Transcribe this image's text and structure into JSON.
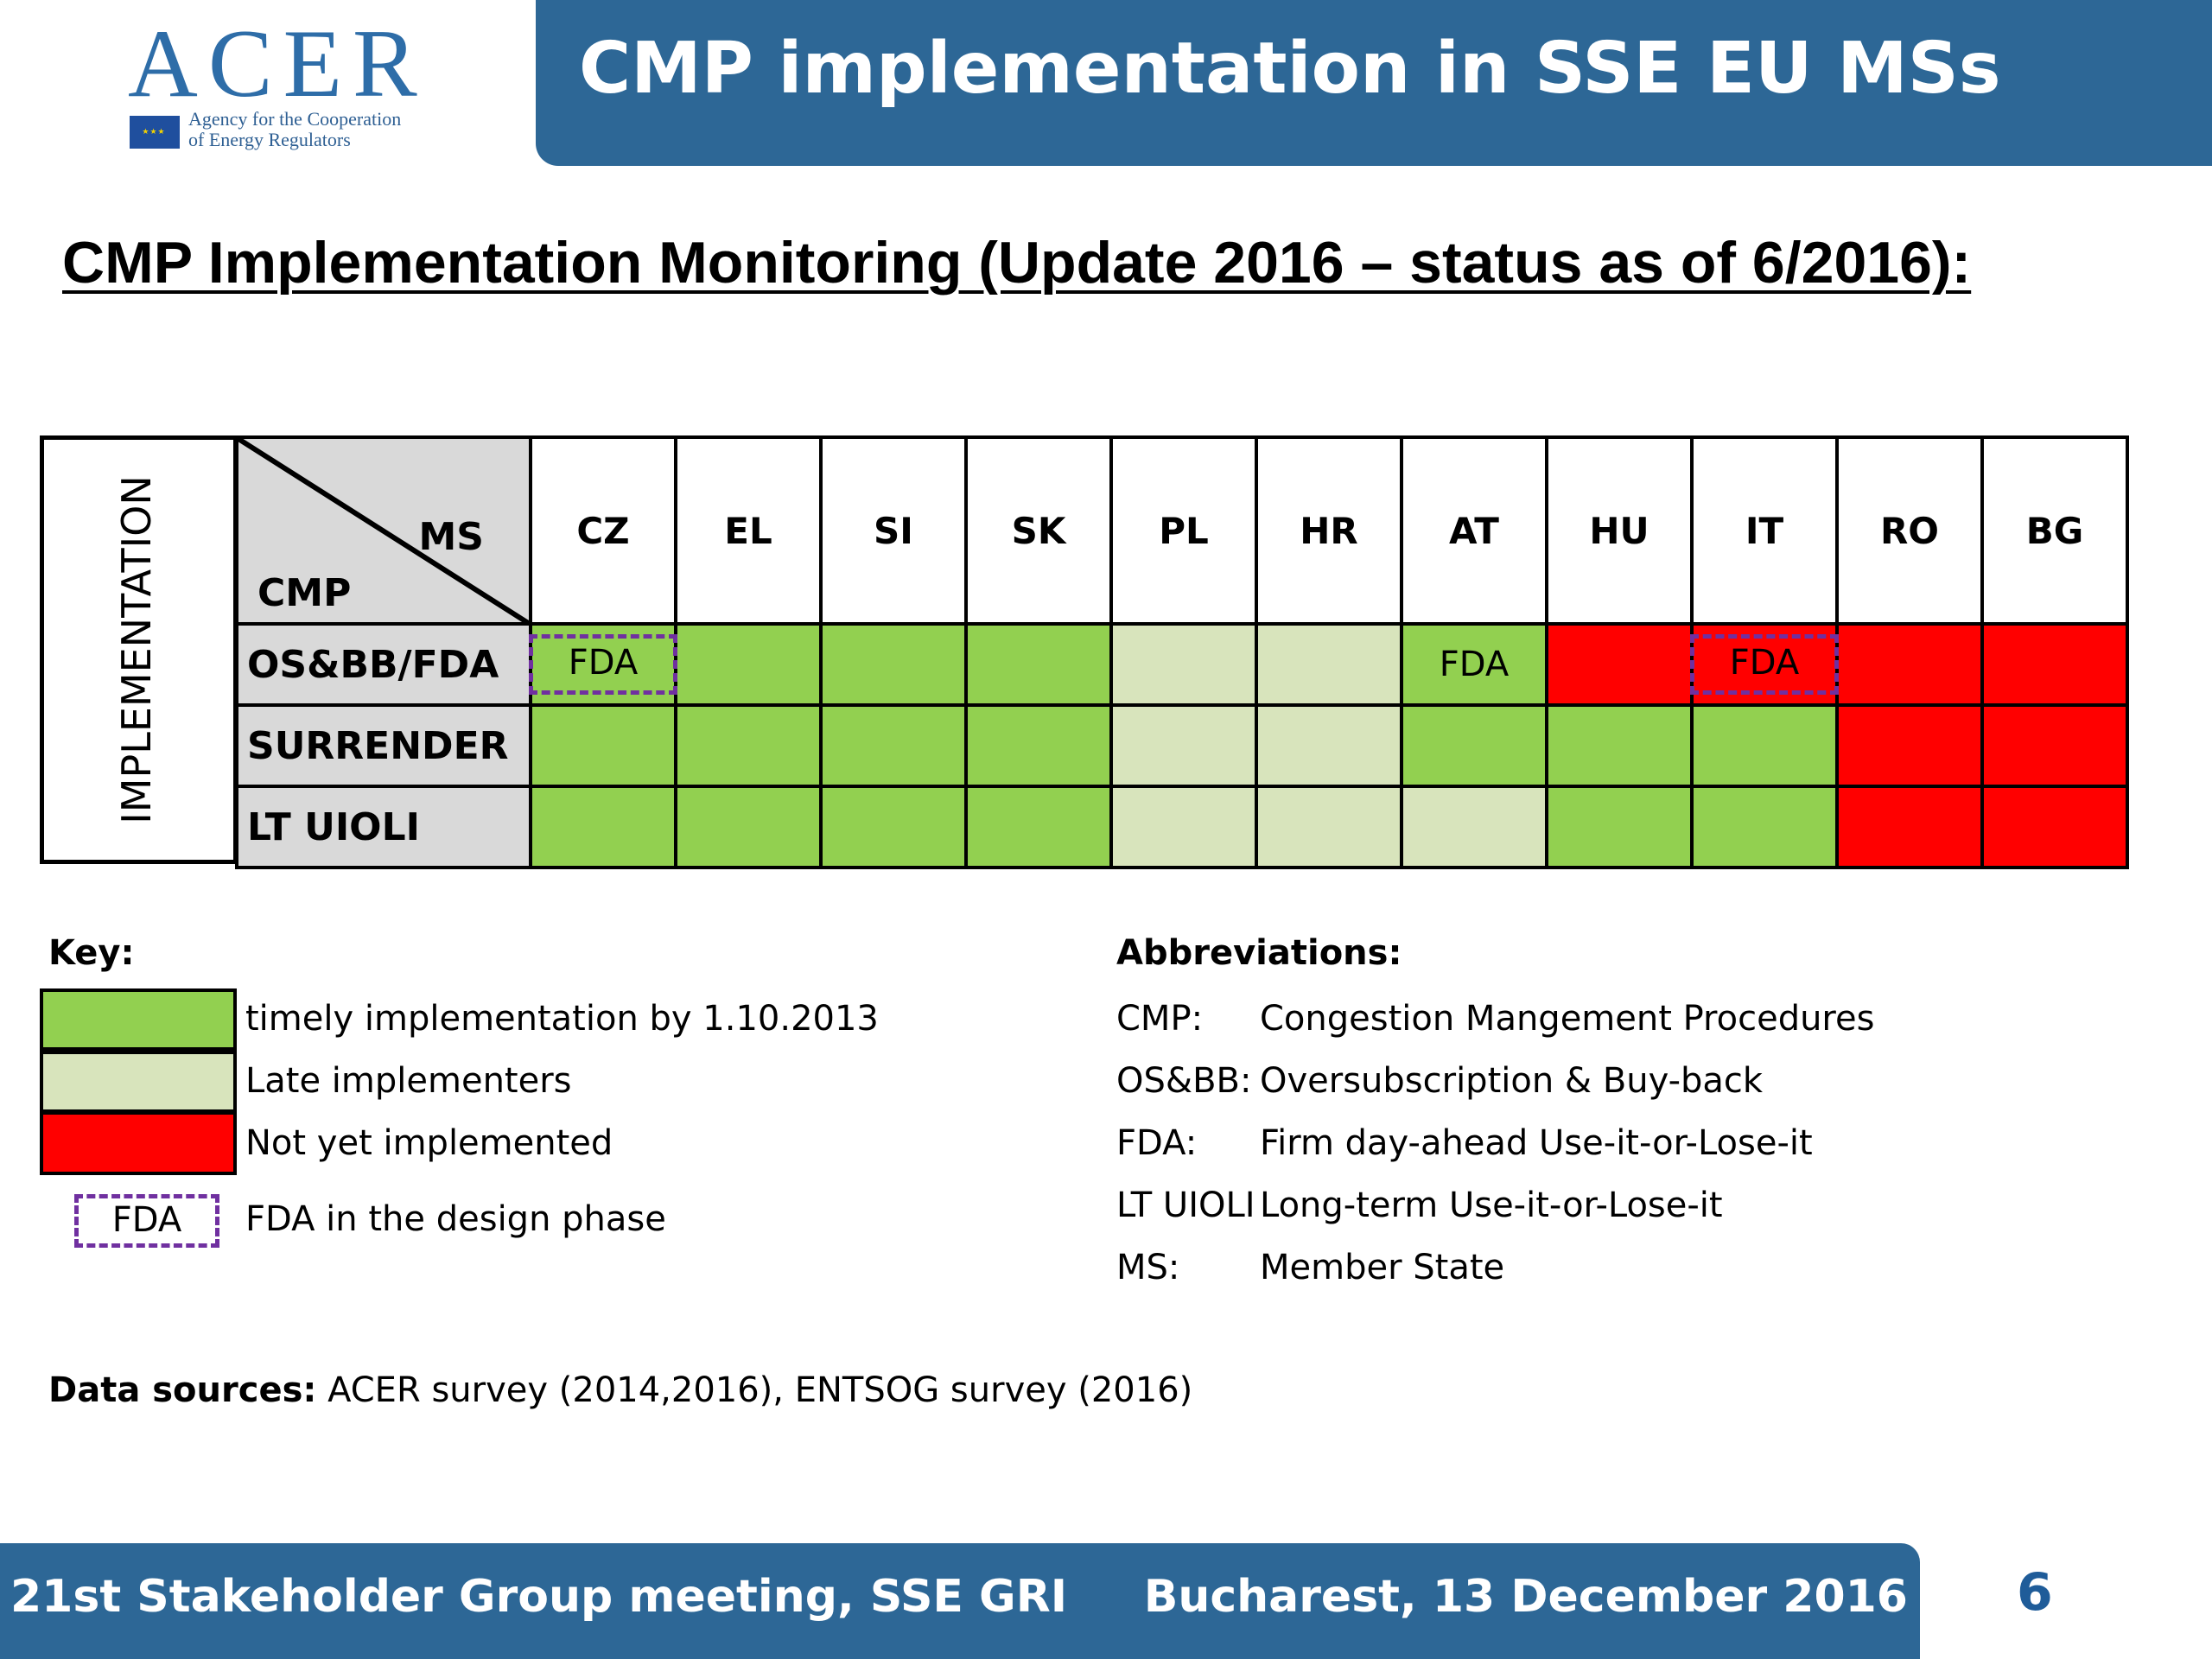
{
  "logo": {
    "word": "ACER",
    "subtitle_line1": "Agency for the Cooperation",
    "subtitle_line2": "of Energy Regulators"
  },
  "header": {
    "title": "CMP implementation in SSE EU MSs"
  },
  "subtitle": "CMP Implementation Monitoring (Update 2016 – status as of 6/2016):",
  "matrix": {
    "side_label": "IMPLEMENTATION",
    "corner_ms": "MS",
    "corner_cmp": "CMP",
    "countries": [
      "CZ",
      "EL",
      "SI",
      "SK",
      "PL",
      "HR",
      "AT",
      "HU",
      "IT",
      "RO",
      "BG"
    ],
    "rows": [
      {
        "label": "OS&BB/FDA",
        "cells": [
          {
            "status": "green",
            "text": "FDA",
            "design": true
          },
          {
            "status": "green",
            "text": "",
            "design": false
          },
          {
            "status": "green",
            "text": "",
            "design": false
          },
          {
            "status": "green",
            "text": "",
            "design": false
          },
          {
            "status": "light",
            "text": "",
            "design": false
          },
          {
            "status": "light",
            "text": "",
            "design": false
          },
          {
            "status": "green",
            "text": "FDA",
            "design": false
          },
          {
            "status": "red",
            "text": "",
            "design": false
          },
          {
            "status": "red",
            "text": "FDA",
            "design": true
          },
          {
            "status": "red",
            "text": "",
            "design": false
          },
          {
            "status": "red",
            "text": "",
            "design": false
          }
        ]
      },
      {
        "label": "SURRENDER",
        "cells": [
          {
            "status": "green",
            "text": "",
            "design": false
          },
          {
            "status": "green",
            "text": "",
            "design": false
          },
          {
            "status": "green",
            "text": "",
            "design": false
          },
          {
            "status": "green",
            "text": "",
            "design": false
          },
          {
            "status": "light",
            "text": "",
            "design": false
          },
          {
            "status": "light",
            "text": "",
            "design": false
          },
          {
            "status": "green",
            "text": "",
            "design": false
          },
          {
            "status": "green",
            "text": "",
            "design": false
          },
          {
            "status": "green",
            "text": "",
            "design": false
          },
          {
            "status": "red",
            "text": "",
            "design": false
          },
          {
            "status": "red",
            "text": "",
            "design": false
          }
        ]
      },
      {
        "label": "LT UIOLI",
        "cells": [
          {
            "status": "green",
            "text": "",
            "design": false
          },
          {
            "status": "green",
            "text": "",
            "design": false
          },
          {
            "status": "green",
            "text": "",
            "design": false
          },
          {
            "status": "green",
            "text": "",
            "design": false
          },
          {
            "status": "light",
            "text": "",
            "design": false
          },
          {
            "status": "light",
            "text": "",
            "design": false
          },
          {
            "status": "light",
            "text": "",
            "design": false
          },
          {
            "status": "green",
            "text": "",
            "design": false
          },
          {
            "status": "green",
            "text": "",
            "design": false
          },
          {
            "status": "red",
            "text": "",
            "design": false
          },
          {
            "status": "red",
            "text": "",
            "design": false
          }
        ]
      }
    ]
  },
  "colors": {
    "green": "#92d050",
    "light": "#d8e4bc",
    "red": "#ff0000",
    "design_dash": "#7030a0",
    "brand_blue": "#2d6796"
  },
  "key": {
    "title": "Key:",
    "green": "timely implementation by 1.10.2013",
    "light": "Late implementers",
    "red": "Not yet implemented",
    "fda_box": "FDA",
    "fda_text": "FDA in the design phase"
  },
  "abbreviations": {
    "title": "Abbreviations:",
    "items": [
      {
        "term": "CMP:",
        "def": "Congestion Mangement Procedures"
      },
      {
        "term": "OS&BB:",
        "def": "Oversubscription & Buy-back"
      },
      {
        "term": "FDA:",
        "def": "Firm day-ahead Use-it-or-Lose-it"
      },
      {
        "term": "LT UIOLI",
        "def": "Long-term Use-it-or-Lose-it"
      },
      {
        "term": "MS:",
        "def": "Member State"
      }
    ]
  },
  "sources": {
    "label": "Data sources:",
    "text": " ACER survey (2014,2016), ENTSOG survey (2016)"
  },
  "footer": {
    "left": "21st Stakeholder Group meeting, SSE GRI",
    "right": "Bucharest, 13 December 2016",
    "page": "6"
  }
}
